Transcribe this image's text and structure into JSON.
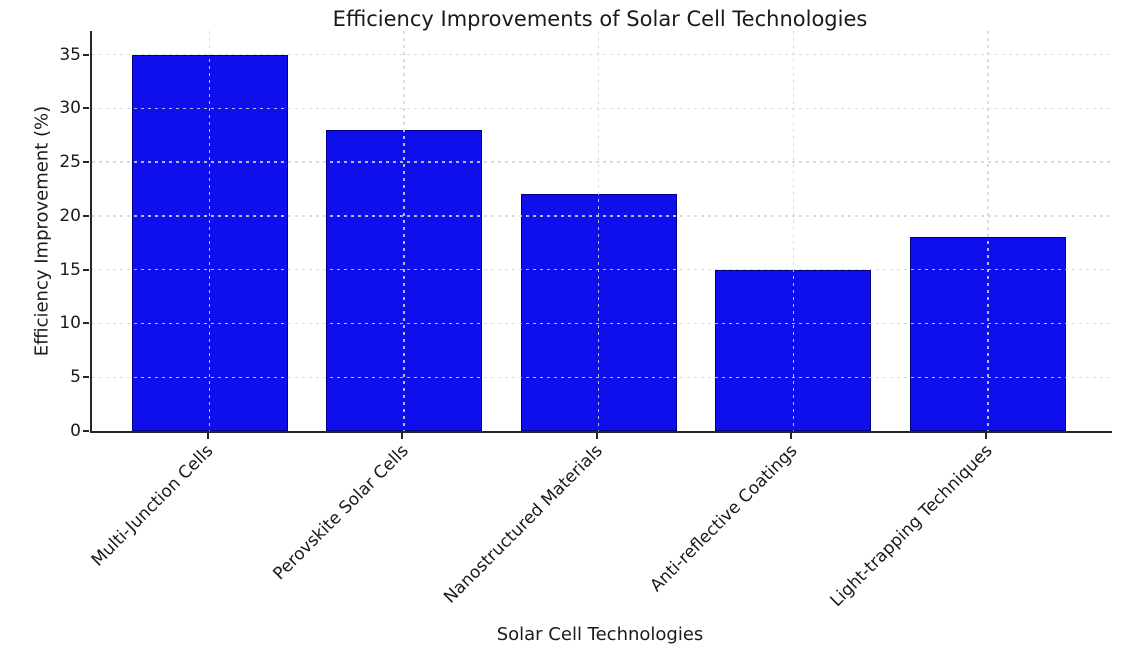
{
  "figure": {
    "background": "#ffffff"
  },
  "chart_data": {
    "type": "bar",
    "title": "Efficiency Improvements of Solar Cell Technologies",
    "xlabel": "Solar Cell Technologies",
    "ylabel": "Efficiency Improvement (%)",
    "categories": [
      "Multi-Junction Cells",
      "Perovskite Solar Cells",
      "Nanostructured Materials",
      "Anti-reflective Coatings",
      "Light-trapping Techniques"
    ],
    "values": [
      35,
      28,
      22,
      15,
      18
    ],
    "yticks": [
      0,
      5,
      10,
      15,
      20,
      25,
      30,
      35
    ],
    "ylim": [
      0,
      37.2
    ],
    "grid": true,
    "grid_linestyle": "dashed",
    "legend_position": "none",
    "bar_color": "#0f0fee",
    "bar_edge_color": "#000080",
    "grid_color": "#d9d9d9",
    "text_color": "#1a1a1a"
  }
}
